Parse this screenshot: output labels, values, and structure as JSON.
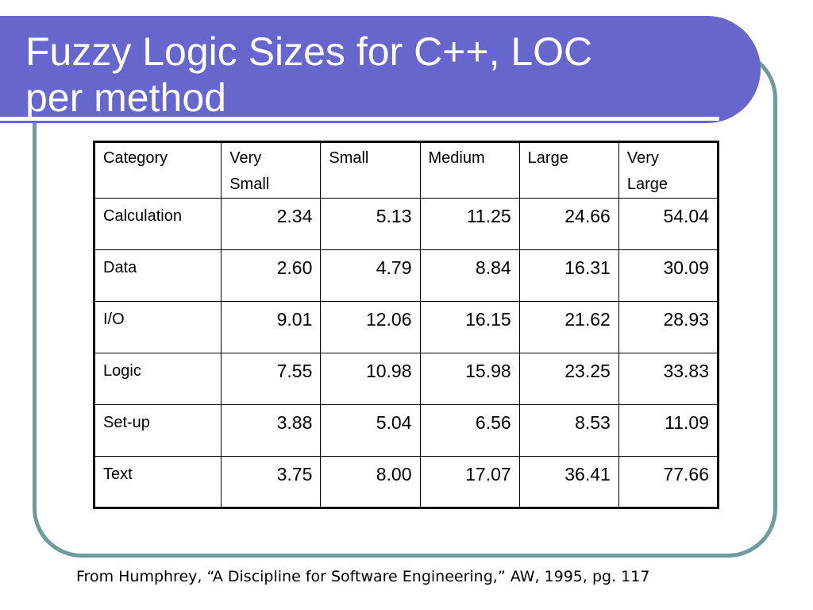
{
  "slide": {
    "title": "Fuzzy Logic Sizes for C++, LOC\nper method",
    "source": "From Humphrey, “A Discipline for Software Engineering,” AW, 1995, pg. 117"
  },
  "table": {
    "headers": [
      "Category",
      "Very\nSmall",
      "Small",
      "Medium",
      "Large",
      "Very\nLarge"
    ],
    "rows": [
      {
        "category": "Calculation",
        "values": [
          "2.34",
          "5.13",
          "11.25",
          "24.66",
          "54.04"
        ]
      },
      {
        "category": "Data",
        "values": [
          "2.60",
          "4.79",
          "8.84",
          "16.31",
          "30.09"
        ]
      },
      {
        "category": "I/O",
        "values": [
          "9.01",
          "12.06",
          "16.15",
          "21.62",
          "28.93"
        ]
      },
      {
        "category": "Logic",
        "values": [
          "7.55",
          "10.98",
          "15.98",
          "23.25",
          "33.83"
        ]
      },
      {
        "category": "Set-up",
        "values": [
          "3.88",
          "5.04",
          "6.56",
          "8.53",
          "11.09"
        ]
      },
      {
        "category": "Text",
        "values": [
          "3.75",
          "8.00",
          "17.07",
          "36.41",
          "77.66"
        ]
      }
    ]
  },
  "colors": {
    "banner": "#6666cc",
    "frame": "#6e9b9b",
    "title_text": "#ffffff",
    "table_border": "#000000"
  }
}
